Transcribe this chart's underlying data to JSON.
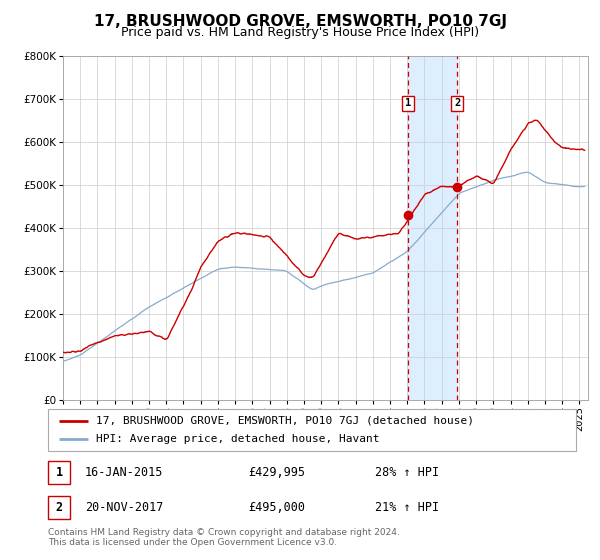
{
  "title": "17, BRUSHWOOD GROVE, EMSWORTH, PO10 7GJ",
  "subtitle": "Price paid vs. HM Land Registry's House Price Index (HPI)",
  "ylim": [
    0,
    800000
  ],
  "yticks": [
    0,
    100000,
    200000,
    300000,
    400000,
    500000,
    600000,
    700000,
    800000
  ],
  "xlim_start": 1995.0,
  "xlim_end": 2025.5,
  "sale1_date": 2015.04,
  "sale1_price": 429995,
  "sale1_label": "16-JAN-2015",
  "sale1_amount": "£429,995",
  "sale1_hpi": "28% ↑ HPI",
  "sale2_date": 2017.9,
  "sale2_price": 495000,
  "sale2_label": "20-NOV-2017",
  "sale2_amount": "£495,000",
  "sale2_hpi": "21% ↑ HPI",
  "shade_color": "#ddeeff",
  "line1_color": "#cc0000",
  "line2_color": "#88aacc",
  "vline_color": "#cc0000",
  "grid_color": "#cccccc",
  "bg_color": "#ffffff",
  "legend_label1": "17, BRUSHWOOD GROVE, EMSWORTH, PO10 7GJ (detached house)",
  "legend_label2": "HPI: Average price, detached house, Havant",
  "footer": "Contains HM Land Registry data © Crown copyright and database right 2024.\nThis data is licensed under the Open Government Licence v3.0.",
  "title_fontsize": 11,
  "subtitle_fontsize": 9,
  "tick_fontsize": 7.5,
  "legend_fontsize": 8,
  "footer_fontsize": 6.5
}
